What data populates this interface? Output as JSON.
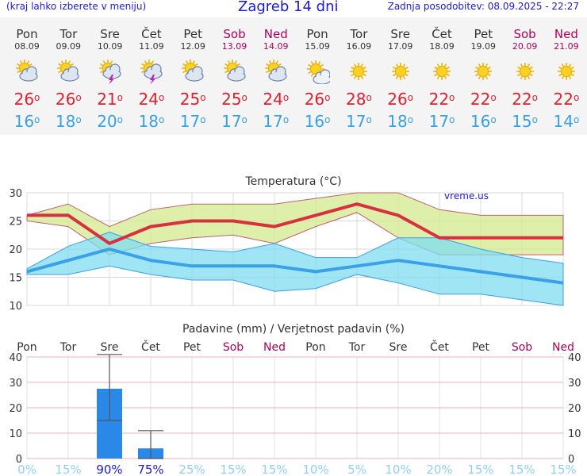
{
  "header": {
    "left_note": "(kraj lahko izberete v meniju)",
    "title": "Zagreb 14 dni",
    "updated": "Zadnja posodobitev: 08.09.2025 - 22:27"
  },
  "days": [
    {
      "name": "Pon",
      "date": "08.09",
      "tmax": "26",
      "tmin": "16",
      "icon": "partly-cloudy-sun-icon",
      "weekend": false
    },
    {
      "name": "Tor",
      "date": "09.09",
      "tmax": "26",
      "tmin": "18",
      "icon": "partly-cloudy-sun-icon",
      "weekend": false
    },
    {
      "name": "Sre",
      "date": "10.09",
      "tmax": "21",
      "tmin": "20",
      "icon": "thunderstorm-sun-icon",
      "weekend": false
    },
    {
      "name": "Čet",
      "date": "11.09",
      "tmax": "24",
      "tmin": "18",
      "icon": "thunderstorm-sun-icon",
      "weekend": false
    },
    {
      "name": "Pet",
      "date": "12.09",
      "tmax": "25",
      "tmin": "17",
      "icon": "partly-cloudy-sun-icon",
      "weekend": false
    },
    {
      "name": "Sob",
      "date": "13.09",
      "tmax": "25",
      "tmin": "17",
      "icon": "partly-cloudy-sun-icon",
      "weekend": true
    },
    {
      "name": "Ned",
      "date": "14.09",
      "tmax": "24",
      "tmin": "17",
      "icon": "partly-cloudy-sun-icon",
      "weekend": true
    },
    {
      "name": "Pon",
      "date": "15.09",
      "tmax": "26",
      "tmin": "16",
      "icon": "mostly-sunny-icon",
      "weekend": false
    },
    {
      "name": "Tor",
      "date": "16.09",
      "tmax": "28",
      "tmin": "17",
      "icon": "sunny-icon",
      "weekend": false
    },
    {
      "name": "Sre",
      "date": "17.09",
      "tmax": "26",
      "tmin": "18",
      "icon": "sunny-icon",
      "weekend": false
    },
    {
      "name": "Čet",
      "date": "18.09",
      "tmax": "22",
      "tmin": "17",
      "icon": "sunny-icon",
      "weekend": false
    },
    {
      "name": "Pet",
      "date": "19.09",
      "tmax": "22",
      "tmin": "16",
      "icon": "sunny-icon",
      "weekend": false
    },
    {
      "name": "Sob",
      "date": "20.09",
      "tmax": "22",
      "tmin": "15",
      "icon": "sunny-icon",
      "weekend": true
    },
    {
      "name": "Ned",
      "date": "21.09",
      "tmax": "22",
      "tmin": "14",
      "icon": "sunny-icon",
      "weekend": true
    }
  ],
  "degree_symbol": "o",
  "colors": {
    "tmax": "#e0202e",
    "tmin": "#3aa0e0",
    "weekend": "#b0005a",
    "header": "#1a1ad0",
    "precip": "#2a88e8"
  },
  "chart_data": [
    {
      "type": "line",
      "title": "Temperatura (°C)",
      "watermark": "vreme.us",
      "ylim": [
        10,
        30
      ],
      "yticks": [
        10,
        15,
        20,
        25,
        30
      ],
      "x": [
        "08.09",
        "09.09",
        "10.09",
        "11.09",
        "12.09",
        "13.09",
        "14.09",
        "15.09",
        "16.09",
        "17.09",
        "18.09",
        "19.09",
        "20.09",
        "21.09"
      ],
      "series": [
        {
          "name": "tmax",
          "values": [
            26,
            26,
            21,
            24,
            25,
            25,
            24,
            26,
            28,
            26,
            22,
            22,
            22,
            22
          ]
        },
        {
          "name": "tmax_range_high",
          "values": [
            26,
            28,
            24,
            27,
            28,
            28,
            28,
            29,
            30,
            30,
            27,
            26,
            26,
            26
          ]
        },
        {
          "name": "tmax_range_low",
          "values": [
            25,
            24,
            19,
            21,
            22,
            22.5,
            21,
            24,
            26.5,
            22,
            19,
            19,
            19,
            19
          ]
        },
        {
          "name": "tmin",
          "values": [
            16,
            18,
            20,
            18,
            17,
            17,
            17,
            16,
            17,
            18,
            17,
            16,
            15,
            14
          ]
        },
        {
          "name": "tmin_range_high",
          "values": [
            16.5,
            20.5,
            23,
            20.5,
            20,
            19.5,
            21,
            18.5,
            18.5,
            22,
            22,
            20,
            18.5,
            17.5
          ]
        },
        {
          "name": "tmin_range_low",
          "values": [
            15.5,
            15.5,
            17,
            15.5,
            14.5,
            14.5,
            12.5,
            13,
            15.5,
            14,
            12,
            12,
            11,
            10
          ]
        }
      ]
    },
    {
      "type": "bar",
      "title": "Padavine (mm) / Verjetnost padavin (%)",
      "ylim": [
        0,
        40
      ],
      "yticks": [
        0,
        10,
        20,
        30,
        40
      ],
      "categories": [
        "Pon",
        "Tor",
        "Sre",
        "Čet",
        "Pet",
        "Sob",
        "Ned",
        "Pon",
        "Tor",
        "Sre",
        "Čet",
        "Pet",
        "Sob",
        "Ned"
      ],
      "values": [
        0,
        0,
        27.5,
        4,
        0,
        0,
        0,
        0,
        0,
        0,
        0,
        0,
        0,
        0
      ],
      "error_high": [
        null,
        null,
        41,
        11,
        null,
        null,
        null,
        null,
        null,
        null,
        null,
        null,
        null,
        null
      ],
      "error_low": [
        null,
        null,
        15,
        0,
        null,
        null,
        null,
        null,
        null,
        null,
        null,
        null,
        null,
        null
      ],
      "probability": [
        "0%",
        "15%",
        "90%",
        "75%",
        "25%",
        "15%",
        "15%",
        "10%",
        "5%",
        "10%",
        "20%",
        "15%",
        "15%",
        "15%"
      ],
      "probability_values": [
        0,
        15,
        90,
        75,
        25,
        15,
        15,
        10,
        5,
        10,
        20,
        15,
        15,
        15
      ]
    }
  ]
}
